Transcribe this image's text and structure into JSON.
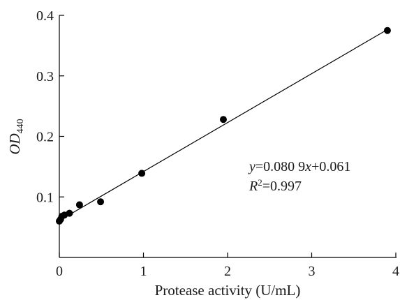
{
  "chart_data": {
    "type": "scatter",
    "title": "",
    "xlabel": "Protease activity (U/mL)",
    "ylabel": {
      "main": "OD",
      "sub": "440"
    },
    "xlim": [
      0,
      4
    ],
    "ylim": [
      0.0,
      0.4
    ],
    "xticks": [
      "0",
      "1",
      "2",
      "3",
      "4"
    ],
    "yticks": [
      "0.1",
      "0.2",
      "0.3",
      "0.4"
    ],
    "grid": false,
    "points": {
      "x": [
        0.0,
        0.015,
        0.03,
        0.06,
        0.12,
        0.24,
        0.49,
        0.98,
        1.95,
        3.9
      ],
      "y": [
        0.06,
        0.063,
        0.068,
        0.07,
        0.073,
        0.087,
        0.092,
        0.139,
        0.228,
        0.375
      ]
    },
    "fit": {
      "slope": 0.0809,
      "intercept": 0.061,
      "x_range": [
        0,
        3.9
      ]
    },
    "annotations": {
      "equation": {
        "y": "y",
        "eq1": "=0.080 9",
        "x": "x",
        "eq2": "+0.061"
      },
      "r2": {
        "r": "R",
        "sup": "2",
        "rest": "=0.997"
      }
    },
    "colors": {
      "points": "#000000",
      "line": "#000000",
      "axis": "#000000"
    }
  }
}
